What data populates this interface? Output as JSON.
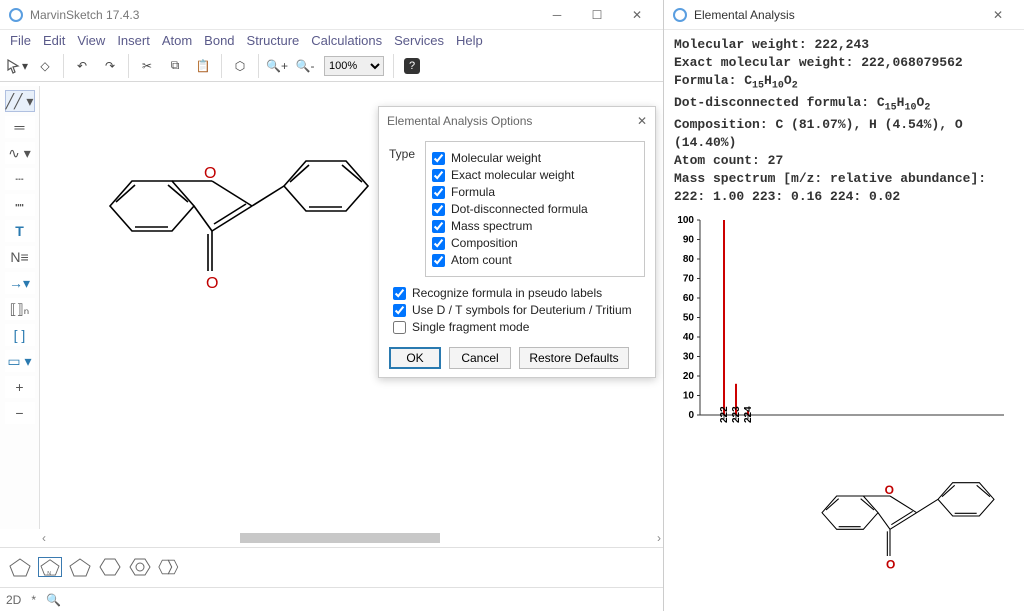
{
  "app": {
    "title": "MarvinSketch 17.4.3",
    "menu": [
      "File",
      "Edit",
      "View",
      "Insert",
      "Atom",
      "Bond",
      "Structure",
      "Calculations",
      "Services",
      "Help"
    ],
    "zoom": "100%"
  },
  "dialog": {
    "title": "Elemental Analysis Options",
    "type_label": "Type",
    "options": [
      {
        "label": "Molecular weight",
        "checked": true
      },
      {
        "label": "Exact molecular weight",
        "checked": true
      },
      {
        "label": "Formula",
        "checked": true
      },
      {
        "label": "Dot-disconnected formula",
        "checked": true
      },
      {
        "label": "Mass spectrum",
        "checked": true
      },
      {
        "label": "Composition",
        "checked": true
      },
      {
        "label": "Atom count",
        "checked": true
      }
    ],
    "extras": [
      {
        "label": "Recognize formula in pseudo labels",
        "checked": true
      },
      {
        "label": "Use D / T symbols for Deuterium / Tritium",
        "checked": true
      },
      {
        "label": "Single fragment mode",
        "checked": false
      }
    ],
    "ok": "OK",
    "cancel": "Cancel",
    "restore": "Restore Defaults"
  },
  "status": {
    "mode": "2D",
    "star": "*"
  },
  "analysis": {
    "title": "Elemental Analysis",
    "lines": {
      "mw_lbl": "Molecular weight:",
      "mw_val": "222,243",
      "emw_lbl": "Exact molecular weight:",
      "emw_val": "222,068079562",
      "formula_lbl": "Formula:",
      "formula_val": "C15H10O2",
      "ddf_lbl": "Dot-disconnected formula:",
      "ddf_val": "C15H10O2",
      "comp_lbl": "Composition:",
      "comp_val": "C (81.07%), H (4.54%), O (14.40%)",
      "atoms_lbl": "Atom count:",
      "atoms_val": "27",
      "ms_hdr": "Mass spectrum [m/z: relative abundance]:",
      "ms_vals": "222: 1.00 223: 0.16 224: 0.02"
    }
  },
  "chart": {
    "y_ticks": [
      0,
      10,
      20,
      30,
      40,
      50,
      60,
      70,
      80,
      90,
      100
    ],
    "x_ticks": [
      "222",
      "223",
      "224"
    ],
    "bars": [
      {
        "x": "222",
        "h": 100
      },
      {
        "x": "223",
        "h": 16
      },
      {
        "x": "224",
        "h": 2
      }
    ],
    "axis_color": "#333333",
    "bar_color": "#cc0000",
    "tick_font": 10
  },
  "colors": {
    "o_atom": "#c00000"
  }
}
